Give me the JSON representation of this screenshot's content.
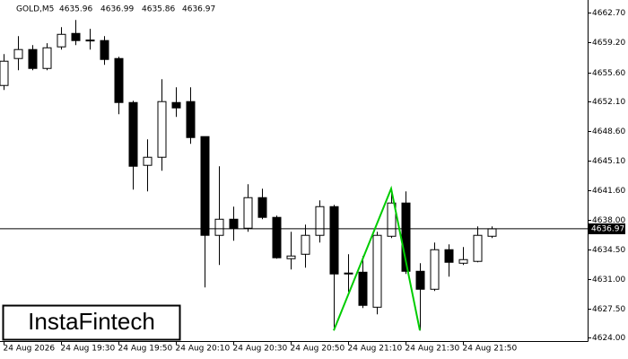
{
  "chart_data": {
    "type": "candlestick",
    "symbol": "GOLD,M5",
    "ohlc": [
      4635.96,
      4636.99,
      4635.86,
      4636.97
    ],
    "logo": "InstaFintech",
    "categories": [
      "24 Aug 2026",
      null,
      null,
      null,
      "24 Aug 19:30",
      null,
      null,
      null,
      "24 Aug 19:50",
      null,
      null,
      null,
      "24 Aug 20:10",
      null,
      null,
      null,
      "24 Aug 20:30",
      null,
      null,
      null,
      "24 Aug 20:50",
      null,
      null,
      null,
      "24 Aug 21:10",
      null,
      null,
      null,
      "24 Aug 21:30",
      null,
      null,
      null,
      "24 Aug 21:50",
      null,
      null
    ],
    "open": [
      4654.04,
      4657.25,
      4658.32,
      4656.07,
      4658.64,
      4660.24,
      4659.39,
      4659.39,
      4657.25,
      4652.01,
      4644.53,
      4645.49,
      4652.01,
      4652.12,
      4647.95,
      4636.19,
      4638.11,
      4637.04,
      4640.68,
      4638.33,
      4633.41,
      4633.94,
      4636.19,
      4639.61,
      4631.59,
      4631.8,
      4627.63,
      4636.08,
      4640.04,
      4631.91,
      4629.77,
      4634.48,
      4632.87,
      4633.09,
      4636.08
    ],
    "high": [
      4657.78,
      4659.92,
      4658.85,
      4659.07,
      4660.99,
      4661.84,
      4660.78,
      4659.92,
      4657.46,
      4652.22,
      4647.63,
      4654.79,
      4653.83,
      4653.83,
      4647.95,
      4644.42,
      4639.61,
      4642.28,
      4641.75,
      4638.54,
      4636.62,
      4637.47,
      4640.36,
      4639.82,
      4633.94,
      4633.73,
      4636.62,
      4641.75,
      4641.43,
      4632.87,
      4635.33,
      4635.12,
      4634.8,
      4637.26,
      4637.26
    ],
    "low": [
      4653.5,
      4655.86,
      4655.86,
      4655.86,
      4658.32,
      4658.85,
      4658.32,
      4656.5,
      4650.62,
      4641.64,
      4641.43,
      4643.88,
      4650.3,
      4647.09,
      4629.99,
      4632.66,
      4635.55,
      4636.62,
      4638.11,
      4633.41,
      4632.13,
      4632.34,
      4635.33,
      4624.86,
      4629.45,
      4627.53,
      4626.78,
      4635.87,
      4631.59,
      4624.86,
      4629.56,
      4631.27,
      4632.66,
      4632.98,
      4635.87
    ],
    "close": [
      4656.93,
      4658.32,
      4656.07,
      4658.53,
      4660.13,
      4659.39,
      4659.45,
      4657.14,
      4652.01,
      4644.42,
      4645.49,
      4652.12,
      4651.37,
      4647.84,
      4636.19,
      4638.11,
      4637.04,
      4640.68,
      4638.33,
      4633.52,
      4633.73,
      4636.19,
      4639.61,
      4631.59,
      4631.7,
      4627.85,
      4636.19,
      4640.04,
      4631.91,
      4629.77,
      4634.48,
      4632.98,
      4633.3,
      4636.19,
      4636.97
    ],
    "current_price": 4636.97,
    "pattern": {
      "color": "#00cc00",
      "index": [
        23,
        27,
        29
      ],
      "price": [
        4624.86,
        4641.75,
        4624.86
      ]
    },
    "ylim": [
      4623.6,
      4663.9
    ],
    "yticks": [
      {
        "value": 4662.7,
        "label": "4662.70"
      },
      {
        "value": 4659.2,
        "label": "4659.20"
      },
      {
        "value": 4655.6,
        "label": "4655.60"
      },
      {
        "value": 4652.1,
        "label": "4652.10"
      },
      {
        "value": 4648.6,
        "label": "4648.60"
      },
      {
        "value": 4645.1,
        "label": "4645.10"
      },
      {
        "value": 4641.6,
        "label": "4641.60"
      },
      {
        "value": 4638.0,
        "label": "4638.00"
      },
      {
        "value": 4634.5,
        "label": "4634.50"
      },
      {
        "value": 4631.0,
        "label": "4631.00"
      },
      {
        "value": 4627.5,
        "label": "4627.50"
      },
      {
        "value": 4624.0,
        "label": "4624.00"
      }
    ]
  }
}
